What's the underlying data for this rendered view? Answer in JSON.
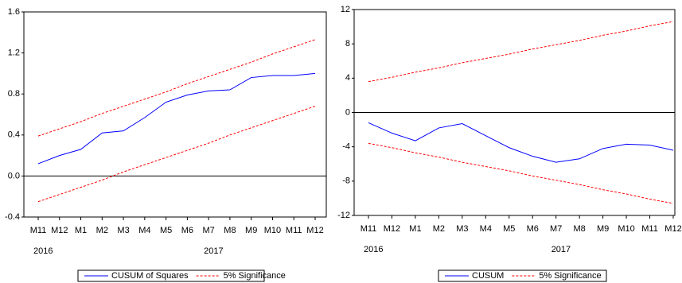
{
  "chart_data": [
    {
      "type": "line",
      "categories": [
        "M11",
        "M12",
        "M1",
        "M2",
        "M3",
        "M4",
        "M5",
        "M6",
        "M7",
        "M8",
        "M9",
        "M10",
        "M11",
        "M12"
      ],
      "years": [
        "2016",
        null,
        null,
        null,
        null,
        null,
        null,
        null,
        "2017",
        null,
        null,
        null,
        null,
        null
      ],
      "ylim": [
        -0.4,
        1.6
      ],
      "yticks": [
        -0.4,
        {
          "value": 0,
          "label": "0.0"
        },
        0.4,
        0.8,
        1.2,
        1.6
      ],
      "series": [
        {
          "name": "CUSUM of Squares",
          "color": "#0000ff",
          "style": "solid",
          "values": [
            0.12,
            0.2,
            0.26,
            0.42,
            0.44,
            0.57,
            0.72,
            0.79,
            0.83,
            0.84,
            0.96,
            0.98,
            0.98,
            1.0
          ]
        },
        {
          "name": "5% Significance",
          "color": "#ff0000",
          "style": "dashed",
          "values": [
            0.39,
            0.46,
            0.53,
            0.61,
            0.68,
            0.75,
            0.82,
            0.9,
            0.97,
            1.04,
            1.11,
            1.19,
            1.26,
            1.33
          ]
        },
        {
          "color": "#ff0000",
          "style": "dashed",
          "values": [
            -0.25,
            -0.18,
            -0.11,
            -0.04,
            0.04,
            0.11,
            0.18,
            0.25,
            0.32,
            0.4,
            0.47,
            0.54,
            0.61,
            0.68
          ]
        }
      ]
    },
    {
      "type": "line",
      "categories": [
        "M11",
        "M12",
        "M1",
        "M2",
        "M3",
        "M4",
        "M5",
        "M6",
        "M7",
        "M8",
        "M9",
        "M10",
        "M11",
        "M12"
      ],
      "years": [
        "2016",
        null,
        null,
        null,
        null,
        null,
        null,
        null,
        "2017",
        null,
        null,
        null,
        null,
        null
      ],
      "ylim": [
        -12,
        12
      ],
      "yticks": [
        -12,
        -8,
        -4,
        0,
        4,
        8,
        12
      ],
      "series": [
        {
          "name": "CUSUM",
          "color": "#0000ff",
          "style": "solid",
          "values": [
            -1.2,
            -2.4,
            -3.3,
            -1.8,
            -1.3,
            -2.7,
            -4.1,
            -5.1,
            -5.8,
            -5.4,
            -4.2,
            -3.7,
            -3.8,
            -4.4
          ]
        },
        {
          "name": "5% Significance",
          "color": "#ff0000",
          "style": "dashed",
          "values": [
            3.6,
            4.1,
            4.7,
            5.2,
            5.8,
            6.3,
            6.8,
            7.4,
            7.9,
            8.4,
            9.0,
            9.5,
            10.1,
            10.6
          ]
        },
        {
          "color": "#ff0000",
          "style": "dashed",
          "values": [
            -3.6,
            -4.1,
            -4.7,
            -5.2,
            -5.8,
            -6.3,
            -6.8,
            -7.4,
            -7.9,
            -8.4,
            -9.0,
            -9.5,
            -10.1,
            -10.6
          ]
        }
      ]
    }
  ]
}
